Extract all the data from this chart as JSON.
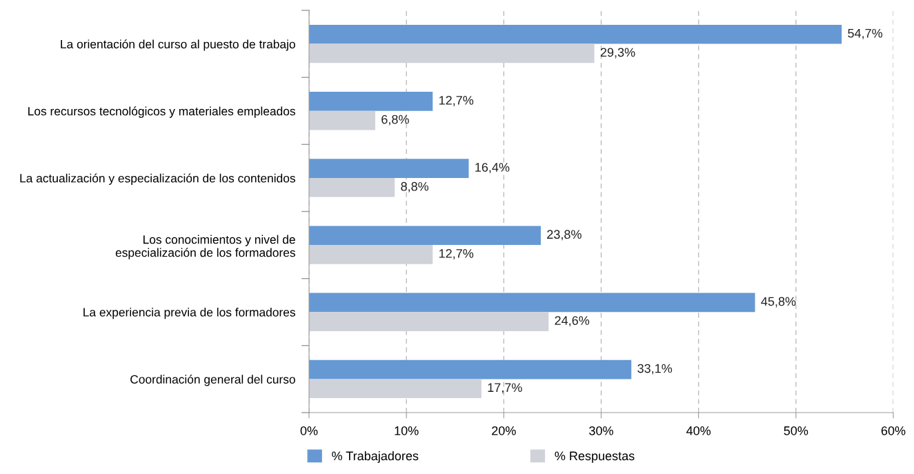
{
  "chart_data": {
    "type": "bar",
    "orientation": "horizontal",
    "categories": [
      "La orientación del curso al puesto de trabajo",
      "Los recursos tecnológicos y materiales empleados",
      "La actualización y especialización de los contenidos",
      "Los conocimientos y nivel de\nespecialización de los formadores",
      "La experiencia previa de los formadores",
      "Coordinación general del curso"
    ],
    "series": [
      {
        "name": "% Trabajadores",
        "color": "#6699d3",
        "values": [
          54.7,
          12.7,
          16.4,
          23.8,
          45.8,
          33.1
        ],
        "value_labels": [
          "54,7%",
          "12,7%",
          "16,4%",
          "23,8%",
          "45,8%",
          "33,1%"
        ]
      },
      {
        "name": "% Respuestas",
        "color": "#d0d2da",
        "values": [
          29.3,
          6.8,
          8.8,
          12.7,
          24.6,
          17.7
        ],
        "value_labels": [
          "29,3%",
          "6,8%",
          "8,8%",
          "12,7%",
          "24,6%",
          "17,7%"
        ]
      }
    ],
    "xlim": [
      0,
      60
    ],
    "xticks": [
      {
        "value": 0,
        "label": "0%"
      },
      {
        "value": 10,
        "label": "10%"
      },
      {
        "value": 20,
        "label": "20%"
      },
      {
        "value": 30,
        "label": "30%"
      },
      {
        "value": 40,
        "label": "40%"
      },
      {
        "value": 50,
        "label": "50%"
      },
      {
        "value": 60,
        "label": "60%"
      }
    ],
    "grid": "x",
    "legend": "bottom"
  }
}
